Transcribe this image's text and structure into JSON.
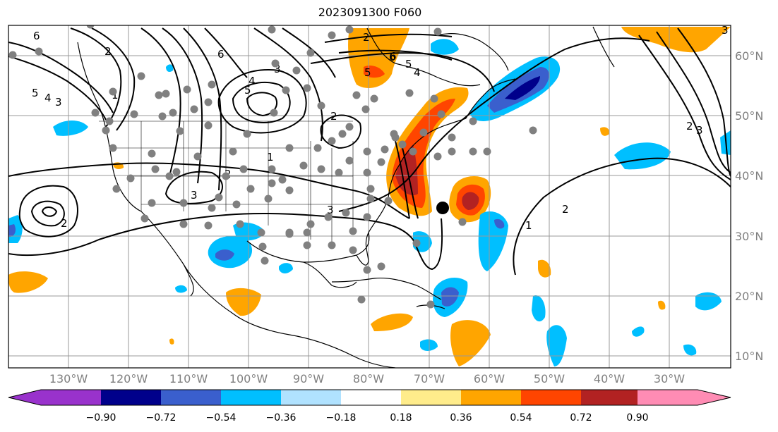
{
  "title": "2023091300 F060",
  "map": {
    "projection": "PlateCarree",
    "lon_range": [
      -140,
      -15
    ],
    "lat_range": [
      8,
      65
    ],
    "lon_ticks": [
      -130,
      -120,
      -110,
      -100,
      -90,
      -80,
      -70,
      -60,
      -50,
      -40,
      -30
    ],
    "lon_tick_labels": [
      "130°W",
      "120°W",
      "110°W",
      "100°W",
      "90°W",
      "80°W",
      "70°W",
      "60°W",
      "50°W",
      "40°W",
      "30°W"
    ],
    "lat_ticks": [
      10,
      20,
      30,
      40,
      50,
      60
    ],
    "lat_tick_labels": [
      "10°N",
      "20°N",
      "30°N",
      "40°N",
      "50°N",
      "60°N"
    ],
    "gridlines": true
  },
  "colorbar": {
    "extend": "both",
    "labels": [
      "−0.90",
      "−0.72",
      "−0.54",
      "−0.36",
      "−0.18",
      "0.18",
      "0.36",
      "0.54",
      "0.72",
      "0.90"
    ],
    "colors": [
      "#9932cc",
      "#00008b",
      "#3a5fcd",
      "#00bfff",
      "#b0e2ff",
      "#ffffff",
      "#ffec8b",
      "#ffa500",
      "#ff4500",
      "#b22222",
      "#ff8cb4"
    ]
  },
  "contour_labels": [
    "6",
    "5",
    "4",
    "3",
    "2",
    "1",
    "2",
    "3",
    "4",
    "5",
    "6",
    "3",
    "5",
    "6",
    "2",
    "3",
    "2",
    "1",
    "2",
    "6",
    "5",
    "4",
    "3",
    "1",
    "2",
    "2",
    "3"
  ],
  "storm_marker": {
    "lon": -67.5,
    "lat": 34.5
  }
}
